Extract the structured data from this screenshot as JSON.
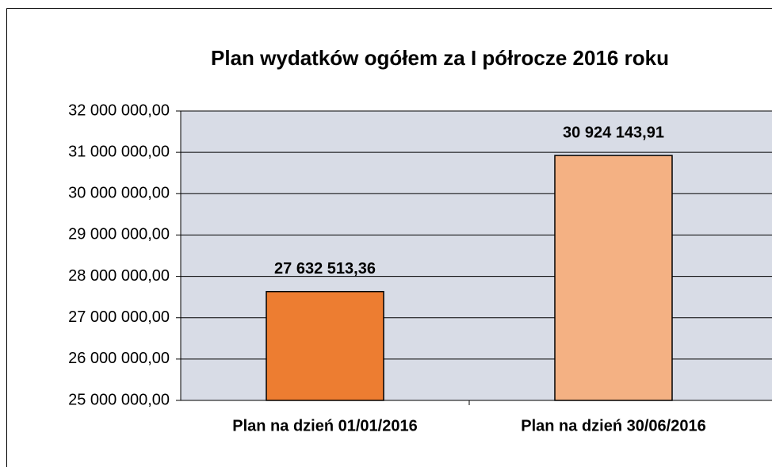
{
  "chart_data": {
    "type": "bar",
    "title": "Plan wydatków ogółem za I półrocze 2016 roku",
    "categories": [
      "Plan na dzień 01/01/2016",
      "Plan na dzień 30/06/2016"
    ],
    "values": [
      27632513.36,
      30924143.91
    ],
    "value_labels": [
      "27 632 513,36",
      "30 924 143,91"
    ],
    "colors": [
      "#ed7d31",
      "#f4b183"
    ],
    "ylim": [
      25000000,
      32000000
    ],
    "yticks": [
      {
        "value": 25000000,
        "label": "25 000 000,00"
      },
      {
        "value": 26000000,
        "label": "26 000 000,00"
      },
      {
        "value": 27000000,
        "label": "27 000 000,00"
      },
      {
        "value": 28000000,
        "label": "28 000 000,00"
      },
      {
        "value": 29000000,
        "label": "29 000 000,00"
      },
      {
        "value": 30000000,
        "label": "30 000 000,00"
      },
      {
        "value": 31000000,
        "label": "31 000 000,00"
      },
      {
        "value": 32000000,
        "label": "32 000 000,00"
      }
    ],
    "grid": true
  }
}
